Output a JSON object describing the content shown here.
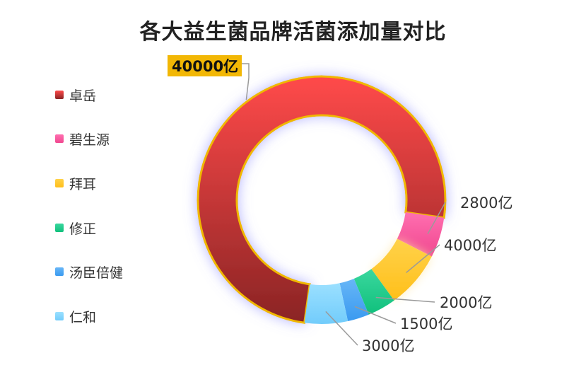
{
  "chart_data": {
    "type": "pie",
    "variant": "donut",
    "title": "各大益生菌品牌活菌添加量对比",
    "unit": "亿",
    "categories": [
      "卓岳",
      "碧生源",
      "拜耳",
      "修正",
      "汤臣倍健",
      "仁和"
    ],
    "values": [
      40000,
      2800,
      4000,
      2000,
      1500,
      3000
    ],
    "data_labels": [
      "40000亿",
      "2800亿",
      "4000亿",
      "2000亿",
      "1500亿",
      "3000亿"
    ],
    "highlighted": "卓岳",
    "colors": [
      [
        "#ff4a4a",
        "#8a2424"
      ],
      [
        "#ff6fb0",
        "#f0478f"
      ],
      [
        "#ffd24a",
        "#ffbf1a"
      ],
      [
        "#3ad79e",
        "#10c07c"
      ],
      [
        "#67b6f7",
        "#3a9af0"
      ],
      [
        "#9be0ff",
        "#72ccfb"
      ]
    ],
    "legend_position": "left"
  }
}
